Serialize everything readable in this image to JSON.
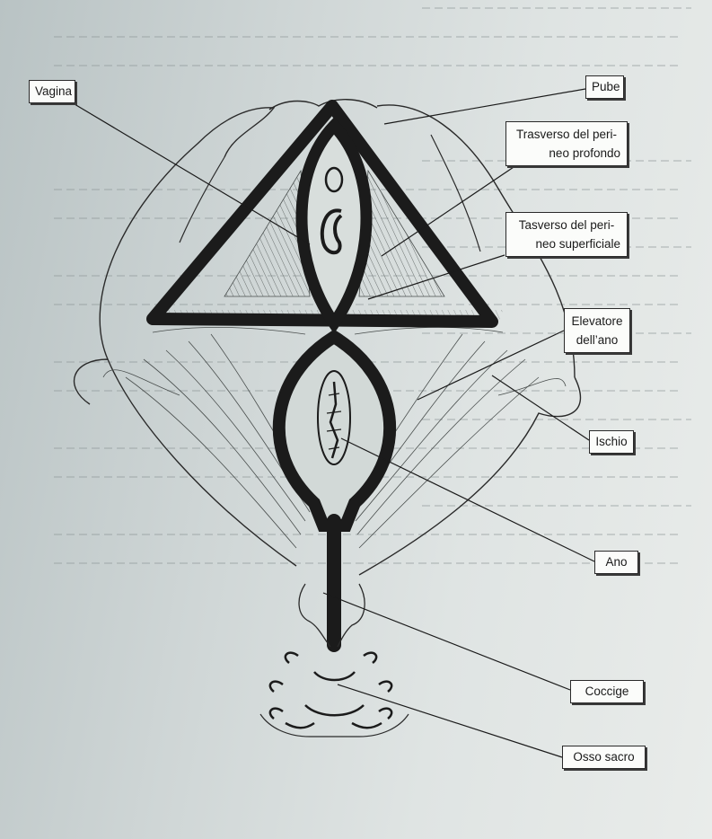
{
  "labels": {
    "vagina": "Vagina",
    "pube": "Pube",
    "trasverso_profondo_1": "Trasverso del peri-",
    "trasverso_profondo_2": "neo profondo",
    "trasverso_superficiale_1": "Tasverso del peri-",
    "trasverso_superficiale_2": "neo superficiale",
    "elevatore_1": "Elevatore",
    "elevatore_2": "dell’ano",
    "ischio": "Ischio",
    "ano": "Ano",
    "coccige": "Coccige",
    "osso_sacro": "Osso sacro"
  },
  "colors": {
    "ink": "#1b1b1b",
    "label_fill": "#fbfcfa",
    "muscle_fill": "#c9cfcd"
  }
}
